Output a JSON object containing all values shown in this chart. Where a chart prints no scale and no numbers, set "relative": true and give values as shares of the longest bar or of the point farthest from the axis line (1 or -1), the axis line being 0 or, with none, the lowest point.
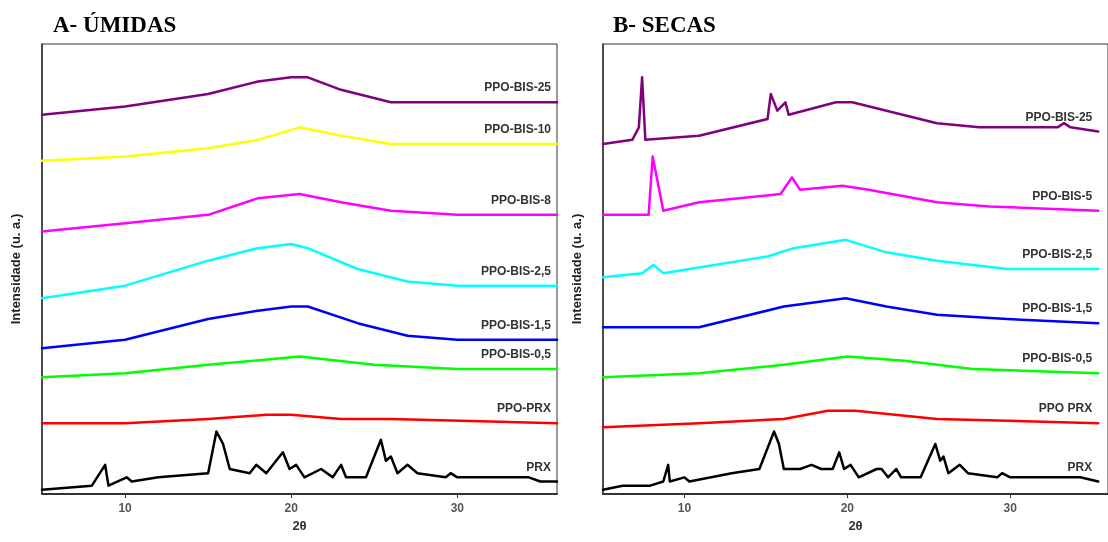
{
  "chart_data": [
    {
      "type": "line",
      "title": "A- ÚMIDAS",
      "xlabel": "2θ",
      "ylabel": "Intensidade (u. a.)",
      "relative": true,
      "xlim": [
        5,
        36
      ],
      "xticks": [
        10,
        20,
        30
      ],
      "tick_labels": "x",
      "marker": "none",
      "line_style": "solid",
      "series": [
        {
          "name": "PPO-BIS-25",
          "color": "#800080",
          "x": [
            5,
            10,
            15,
            18,
            20,
            21,
            23,
            26,
            30,
            36
          ],
          "values": [
            0.91,
            0.93,
            0.96,
            0.99,
            1.0,
            1.0,
            0.97,
            0.94,
            0.94,
            0.94
          ]
        },
        {
          "name": "PPO-BIS-10",
          "color": "#ffff00",
          "x": [
            5,
            10,
            15,
            18,
            20.5,
            23,
            26,
            30,
            36
          ],
          "values": [
            0.8,
            0.81,
            0.83,
            0.85,
            0.88,
            0.86,
            0.84,
            0.84,
            0.84
          ]
        },
        {
          "name": "PPO-BIS-8",
          "color": "#ff00ff",
          "x": [
            5,
            10,
            15,
            18,
            20.5,
            23,
            26,
            30,
            36
          ],
          "values": [
            0.63,
            0.65,
            0.67,
            0.71,
            0.72,
            0.7,
            0.68,
            0.67,
            0.67
          ]
        },
        {
          "name": "PPO-BIS-2,5",
          "color": "#00ffff",
          "x": [
            5,
            10,
            15,
            18,
            20,
            21,
            24,
            27,
            30,
            36
          ],
          "values": [
            0.47,
            0.5,
            0.56,
            0.59,
            0.6,
            0.59,
            0.54,
            0.51,
            0.5,
            0.5
          ]
        },
        {
          "name": "PPO-BIS-1,5",
          "color": "#0000ff",
          "x": [
            5,
            10,
            15,
            18,
            20,
            21,
            24,
            27,
            30,
            36
          ],
          "values": [
            0.35,
            0.37,
            0.42,
            0.44,
            0.45,
            0.45,
            0.41,
            0.38,
            0.37,
            0.37
          ]
        },
        {
          "name": "PPO-BIS-0,5",
          "color": "#00ff00",
          "x": [
            5,
            10,
            15,
            20.5,
            25,
            30,
            36
          ],
          "values": [
            0.28,
            0.29,
            0.31,
            0.33,
            0.31,
            0.3,
            0.3
          ]
        },
        {
          "name": "PPO-PRX",
          "color": "#ff0000",
          "x": [
            5,
            10,
            15,
            18.5,
            20,
            23,
            26,
            36
          ],
          "values": [
            0.17,
            0.17,
            0.18,
            0.19,
            0.19,
            0.18,
            0.18,
            0.17
          ]
        },
        {
          "name": "PRX",
          "color": "#000000",
          "x": [
            5,
            8,
            8.8,
            9,
            10.1,
            10.4,
            12,
            15,
            15.5,
            15.9,
            16.3,
            17.5,
            17.9,
            18.5,
            19.5,
            19.9,
            20.3,
            20.8,
            21.8,
            22.5,
            23,
            23.3,
            24.5,
            25.4,
            25.7,
            26,
            26.4,
            27,
            27.6,
            29.3,
            29.6,
            30,
            33.5,
            34.3,
            35,
            36
          ],
          "values": [
            0.01,
            0.02,
            0.07,
            0.02,
            0.04,
            0.03,
            0.04,
            0.05,
            0.15,
            0.12,
            0.06,
            0.05,
            0.07,
            0.05,
            0.1,
            0.06,
            0.07,
            0.04,
            0.06,
            0.04,
            0.07,
            0.04,
            0.04,
            0.13,
            0.08,
            0.09,
            0.05,
            0.07,
            0.05,
            0.04,
            0.05,
            0.04,
            0.04,
            0.04,
            0.03,
            0.03
          ]
        }
      ]
    },
    {
      "type": "line",
      "title": "B- SECAS",
      "xlabel": "2θ",
      "ylabel": "Intensidade (u. a.)",
      "relative": true,
      "xlim": [
        5,
        36
      ],
      "xticks": [
        10,
        20,
        30
      ],
      "tick_labels": "x",
      "marker": "none",
      "line_style": "solid",
      "series": [
        {
          "name": "PPO-BIS-25",
          "color": "#800080",
          "x": [
            5,
            6.8,
            7.2,
            7.4,
            7.6,
            10.9,
            15.1,
            15.3,
            15.7,
            16.2,
            16.4,
            19.3,
            20.3,
            22.4,
            25.5,
            28.1,
            32.9,
            33.3,
            33.7,
            35.4
          ],
          "values": [
            0.84,
            0.85,
            0.88,
            1.0,
            0.85,
            0.86,
            0.9,
            0.96,
            0.92,
            0.94,
            0.91,
            0.94,
            0.94,
            0.92,
            0.89,
            0.88,
            0.88,
            0.89,
            0.88,
            0.87
          ]
        },
        {
          "name": "PPO-BIS-5",
          "color": "#ff00ff",
          "x": [
            5,
            7.8,
            8.05,
            8.4,
            8.7,
            10.9,
            15.9,
            16.6,
            17.1,
            19.7,
            21.3,
            25.5,
            28.7,
            35.4
          ],
          "values": [
            0.67,
            0.67,
            0.81,
            0.74,
            0.68,
            0.7,
            0.72,
            0.76,
            0.73,
            0.74,
            0.73,
            0.7,
            0.69,
            0.68
          ]
        },
        {
          "name": "PPO-BIS-2,5",
          "color": "#00ffff",
          "x": [
            5,
            7.4,
            8.1,
            8.7,
            15.1,
            16.7,
            19.9,
            22.4,
            25.5,
            29.8,
            35.4
          ],
          "values": [
            0.52,
            0.53,
            0.55,
            0.53,
            0.57,
            0.59,
            0.61,
            0.58,
            0.56,
            0.54,
            0.54
          ]
        },
        {
          "name": "PPO-BIS-1,5",
          "color": "#0000ff",
          "x": [
            5,
            10.9,
            16.1,
            19.9,
            22.4,
            25.5,
            29.8,
            35.4
          ],
          "values": [
            0.4,
            0.4,
            0.45,
            0.47,
            0.45,
            0.43,
            0.42,
            0.41
          ]
        },
        {
          "name": "PPO-BIS-0,5",
          "color": "#00ff00",
          "x": [
            5,
            10.9,
            16.1,
            20,
            23.5,
            27.7,
            35.4
          ],
          "values": [
            0.28,
            0.29,
            0.31,
            0.33,
            0.32,
            0.3,
            0.29
          ]
        },
        {
          "name": "PPO PRX",
          "color": "#ff0000",
          "x": [
            5,
            10.9,
            16.1,
            18.8,
            20.5,
            25.5,
            35.4
          ],
          "values": [
            0.16,
            0.17,
            0.18,
            0.2,
            0.2,
            0.18,
            0.17
          ]
        },
        {
          "name": "PRX",
          "color": "#000000",
          "x": [
            5,
            6.2,
            7.9,
            8.7,
            9,
            9.1,
            10,
            10.3,
            12.9,
            14.6,
            15.5,
            15.8,
            16.1,
            17.1,
            17.8,
            18.4,
            19.1,
            19.5,
            19.8,
            20.2,
            20.7,
            21.8,
            22.1,
            22.5,
            23,
            23.3,
            24.5,
            25.4,
            25.7,
            25.9,
            26.2,
            26.9,
            27.4,
            29.2,
            29.5,
            30,
            34,
            34.3,
            35.4
          ],
          "values": [
            0.01,
            0.02,
            0.02,
            0.03,
            0.07,
            0.03,
            0.04,
            0.03,
            0.05,
            0.06,
            0.15,
            0.12,
            0.06,
            0.06,
            0.07,
            0.06,
            0.06,
            0.1,
            0.06,
            0.07,
            0.04,
            0.06,
            0.06,
            0.04,
            0.06,
            0.04,
            0.04,
            0.12,
            0.08,
            0.09,
            0.05,
            0.07,
            0.05,
            0.04,
            0.05,
            0.04,
            0.04,
            0.04,
            0.03
          ]
        }
      ]
    }
  ]
}
